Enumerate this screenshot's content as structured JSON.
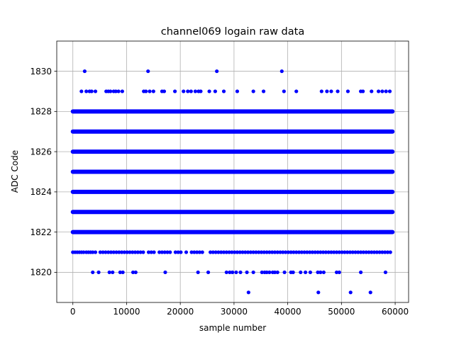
{
  "chart_data": {
    "type": "scatter",
    "title": "channel069 logain raw data",
    "xlabel": "sample number",
    "ylabel": "ADC Code",
    "xlim": [
      -3000,
      62500
    ],
    "ylim": [
      1818.5,
      1831.5
    ],
    "xticks": [
      0,
      10000,
      20000,
      30000,
      40000,
      50000,
      60000
    ],
    "xtick_labels": [
      "0",
      "10000",
      "20000",
      "30000",
      "40000",
      "50000",
      "60000"
    ],
    "yticks": [
      1820,
      1822,
      1824,
      1826,
      1828,
      1830
    ],
    "ytick_labels": [
      "1820",
      "1822",
      "1824",
      "1826",
      "1828",
      "1830"
    ],
    "grid": true,
    "marker_color": "#0000ff",
    "series": [
      {
        "name": "",
        "dense_levels": [
          1822,
          1823,
          1824,
          1825,
          1826,
          1827,
          1828
        ],
        "dense_x_range": [
          0,
          59500
        ],
        "points": {
          "1830": [
            2200,
            14000,
            26800,
            38900
          ],
          "1829": [
            1600,
            2500,
            3100,
            3500,
            4200,
            6200,
            6600,
            7000,
            7600,
            8000,
            8500,
            9200,
            13200,
            13600,
            14300,
            15000,
            16600,
            17000,
            19000,
            20600,
            21400,
            22000,
            22800,
            23400,
            23800,
            25400,
            26500,
            28100,
            30600,
            33600,
            35500,
            39300,
            41600,
            46300,
            47300,
            48100,
            49300,
            51200,
            53600,
            54000,
            55600,
            56900,
            57600,
            58300,
            59000
          ],
          "1821": [
            0,
            400,
            800,
            1200,
            1600,
            2000,
            2500,
            2900,
            3300,
            3700,
            4200,
            5100,
            5600,
            6100,
            6600,
            7100,
            7600,
            8100,
            8600,
            9100,
            9600,
            10100,
            10600,
            11100,
            11600,
            12100,
            12600,
            13100,
            14100,
            14600,
            15100,
            16100,
            16600,
            17100,
            17600,
            18100,
            19100,
            19600,
            20100,
            21100,
            22100,
            22600,
            23100,
            23600,
            24100,
            25600,
            26100,
            26600,
            27100,
            27600,
            28100,
            28600,
            29100,
            29600,
            30100,
            30600,
            31100,
            31600,
            32100,
            32600,
            33100,
            33600,
            34100,
            34600,
            35100,
            35600,
            36100,
            36600,
            37100,
            37600,
            38100,
            38600,
            39100,
            39600,
            40100,
            40600,
            41100,
            41600,
            42100,
            42600,
            43100,
            43600,
            44100,
            44600,
            45100,
            45600,
            46100,
            46600,
            47100,
            47600,
            48100,
            48600,
            49100,
            49600,
            50100,
            50600,
            51100,
            51600,
            52100,
            52600,
            53100,
            53600,
            54100,
            54600,
            55100,
            55600,
            56100,
            56600,
            57100,
            57600,
            58100,
            58600,
            59100
          ],
          "1820": [
            3700,
            4800,
            6800,
            7400,
            8800,
            9300,
            11200,
            11700,
            17200,
            23300,
            25200,
            28600,
            29200,
            29700,
            30400,
            31200,
            32400,
            33600,
            35200,
            35700,
            36100,
            36600,
            37200,
            37600,
            38100,
            39400,
            40600,
            41000,
            42400,
            43300,
            44200,
            45600,
            46100,
            46700,
            49100,
            49600,
            53600,
            58200
          ],
          "1819": [
            32700,
            45700,
            51700,
            55400
          ]
        }
      }
    ]
  }
}
